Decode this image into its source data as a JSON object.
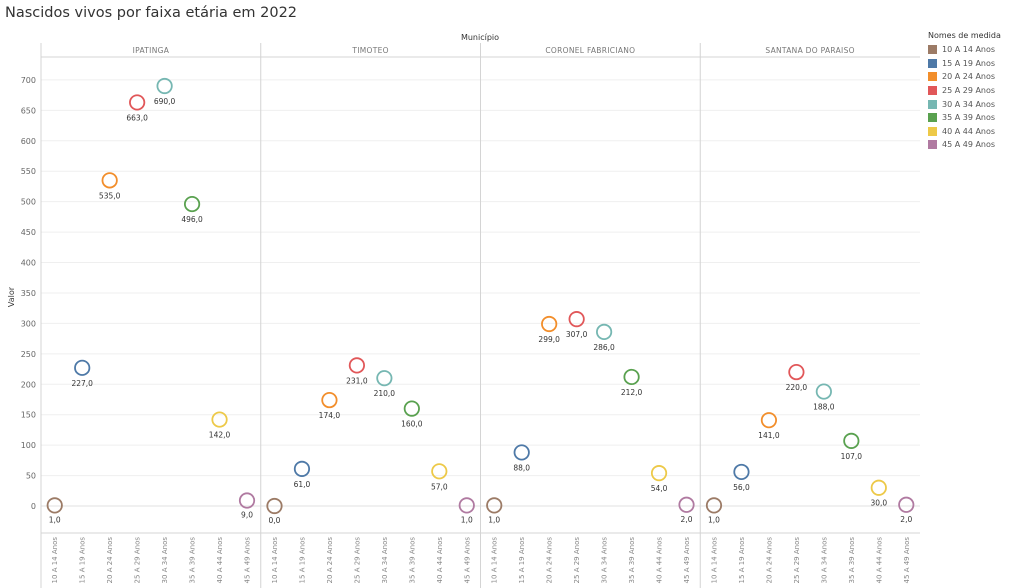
{
  "title": "Nascidos vivos por faixa etária em 2022",
  "legend": {
    "title": "Nomes de medida",
    "items": [
      {
        "label": "10 A 14 Anos",
        "color": "#9c7b66"
      },
      {
        "label": "15 A 19 Anos",
        "color": "#4e79a7"
      },
      {
        "label": "20 A 24 Anos",
        "color": "#f28e2b"
      },
      {
        "label": "25 A 29 Anos",
        "color": "#e15759"
      },
      {
        "label": "30 A 34 Anos",
        "color": "#76b7b2"
      },
      {
        "label": "35 A 39 Anos",
        "color": "#59a14f"
      },
      {
        "label": "40 A 44 Anos",
        "color": "#edc948"
      },
      {
        "label": "45 A 49 Anos",
        "color": "#b07aa1"
      }
    ]
  },
  "chart_data": {
    "type": "scatter",
    "title": "Nascidos vivos por faixa etária em 2022",
    "column_header": "Município",
    "ylabel": "Valor",
    "ylim": [
      -50,
      760
    ],
    "yticks": [
      0,
      50,
      100,
      150,
      200,
      250,
      300,
      350,
      400,
      450,
      500,
      550,
      600,
      650,
      700
    ],
    "grid": true,
    "legend_position": "right",
    "categories": [
      "10 A 14 Anos",
      "15 A 19 Anos",
      "20 A 24 Anos",
      "25 A 29 Anos",
      "30 A 34 Anos",
      "35 A 39 Anos",
      "40 A 44 Anos",
      "45 A 49 Anos"
    ],
    "panels": [
      {
        "name": "IPATINGA",
        "values": [
          1,
          227,
          535,
          663,
          690,
          496,
          142,
          9
        ],
        "labels": [
          "1,0",
          "227,0",
          "535,0",
          "663,0",
          "690,0",
          "496,0",
          "142,0",
          "9,0"
        ]
      },
      {
        "name": "TIMOTEO",
        "values": [
          0,
          61,
          174,
          231,
          210,
          160,
          57,
          1
        ],
        "labels": [
          "0,0",
          "61,0",
          "174,0",
          "231,0",
          "210,0",
          "160,0",
          "57,0",
          "1,0"
        ]
      },
      {
        "name": "CORONEL FABRICIANO",
        "values": [
          1,
          88,
          299,
          307,
          286,
          212,
          54,
          2
        ],
        "labels": [
          "1,0",
          "88,0",
          "299,0",
          "307,0",
          "286,0",
          "212,0",
          "54,0",
          "2,0"
        ]
      },
      {
        "name": "SANTANA DO PARAISO",
        "values": [
          1,
          56,
          141,
          220,
          188,
          107,
          30,
          2
        ],
        "labels": [
          "1,0",
          "56,0",
          "141,0",
          "220,0",
          "188,0",
          "107,0",
          "30,0",
          "2,0"
        ]
      }
    ]
  }
}
